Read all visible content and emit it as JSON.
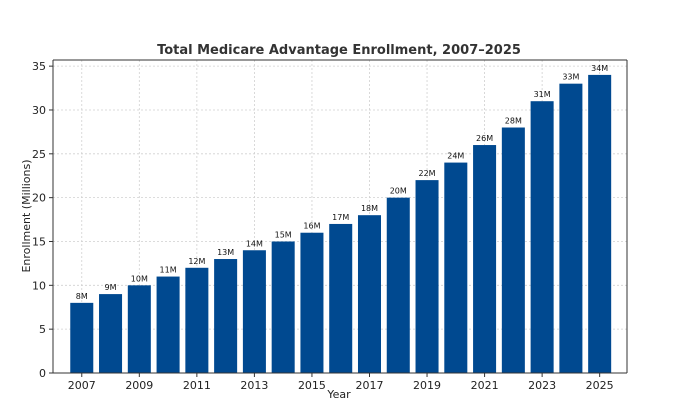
{
  "chart_data": {
    "type": "bar",
    "title": "Total Medicare Advantage Enrollment, 2007–2025",
    "xlabel": "Year",
    "ylabel": "Enrollment (Millions)",
    "categories": [
      "2007",
      "2008",
      "2009",
      "2010",
      "2011",
      "2012",
      "2013",
      "2014",
      "2015",
      "2016",
      "2017",
      "2018",
      "2019",
      "2020",
      "2021",
      "2022",
      "2023",
      "2024",
      "2025"
    ],
    "values": [
      8,
      9,
      10,
      11,
      12,
      13,
      14,
      15,
      16,
      17,
      18,
      20,
      22,
      24,
      26,
      28,
      31,
      33,
      34
    ],
    "data_labels": [
      "8M",
      "9M",
      "10M",
      "11M",
      "12M",
      "13M",
      "14M",
      "15M",
      "16M",
      "17M",
      "18M",
      "20M",
      "22M",
      "24M",
      "26M",
      "28M",
      "31M",
      "33M",
      "34M"
    ],
    "x_tick_labels": [
      "2007",
      "2009",
      "2011",
      "2013",
      "2015",
      "2017",
      "2019",
      "2021",
      "2023",
      "2025"
    ],
    "y_ticks": [
      0,
      5,
      10,
      15,
      20,
      25,
      30,
      35
    ],
    "ylim": [
      0,
      35.7
    ],
    "grid": true,
    "colors": {
      "bar": "#004990",
      "grid": "#d0d0d0",
      "axis": "#333333"
    }
  }
}
